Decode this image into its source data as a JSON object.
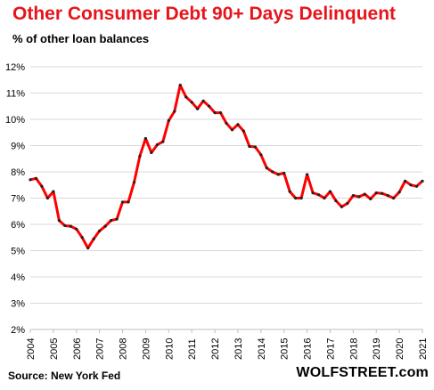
{
  "title": "Other Consumer  Debt 90+ Days Delinquent",
  "subtitle": "% of other loan balances",
  "source": "Source: New York Fed",
  "brand": "WOLFSTREET.com",
  "colors": {
    "title": "#e8141b",
    "line": "#ff0000",
    "marker": "#222222",
    "grid": "#d9d9d9"
  },
  "chart_data": {
    "type": "line",
    "title": "Other Consumer  Debt 90+ Days Delinquent",
    "subtitle": "% of other loan balances",
    "xlabel": "",
    "ylabel": "",
    "ylim": [
      2,
      12
    ],
    "xlim": [
      2004,
      2021
    ],
    "grid": true,
    "y_ticks": [
      "2%",
      "3%",
      "4%",
      "5%",
      "6%",
      "7%",
      "8%",
      "9%",
      "10%",
      "11%",
      "12%"
    ],
    "x_ticks": [
      "2004",
      "2005",
      "2006",
      "2007",
      "2008",
      "2009",
      "2010",
      "2011",
      "2012",
      "2013",
      "2014",
      "2015",
      "2016",
      "2017",
      "2018",
      "2019",
      "2020",
      "2021"
    ],
    "series": [
      {
        "x": [
          2004.0,
          2004.25,
          2004.5,
          2004.75,
          2005.0,
          2005.25,
          2005.5,
          2005.75,
          2006.0,
          2006.25,
          2006.5,
          2006.75,
          2007.0,
          2007.25,
          2007.5,
          2007.75,
          2008.0,
          2008.25,
          2008.5,
          2008.75,
          2009.0,
          2009.25,
          2009.5,
          2009.75,
          2010.0,
          2010.25,
          2010.5,
          2010.75,
          2011.0,
          2011.25,
          2011.5,
          2011.75,
          2012.0,
          2012.25,
          2012.5,
          2012.75,
          2013.0,
          2013.25,
          2013.5,
          2013.75,
          2014.0,
          2014.25,
          2014.5,
          2014.75,
          2015.0,
          2015.25,
          2015.5,
          2015.75,
          2016.0,
          2016.25,
          2016.5,
          2016.75,
          2017.0,
          2017.25,
          2017.5,
          2017.75,
          2018.0,
          2018.25,
          2018.5,
          2018.75,
          2019.0,
          2019.25,
          2019.5,
          2019.75,
          2020.0,
          2020.25,
          2020.5,
          2020.75,
          2021.0
        ],
        "values": [
          7.7,
          7.75,
          7.45,
          7.0,
          7.25,
          6.15,
          5.95,
          5.93,
          5.82,
          5.5,
          5.1,
          5.45,
          5.75,
          5.93,
          6.15,
          6.2,
          6.85,
          6.85,
          7.6,
          8.6,
          9.27,
          8.73,
          9.03,
          9.15,
          9.95,
          10.3,
          11.3,
          10.85,
          10.65,
          10.4,
          10.7,
          10.5,
          10.25,
          10.25,
          9.85,
          9.6,
          9.8,
          9.55,
          8.97,
          8.95,
          8.65,
          8.15,
          8.0,
          7.9,
          7.95,
          7.25,
          7.0,
          7.0,
          7.9,
          7.2,
          7.13,
          7.0,
          7.25,
          6.9,
          6.67,
          6.8,
          7.1,
          7.05,
          7.15,
          6.97,
          7.2,
          7.18,
          7.1,
          7.0,
          7.23,
          7.65,
          7.5,
          7.45,
          7.65
        ]
      }
    ]
  }
}
